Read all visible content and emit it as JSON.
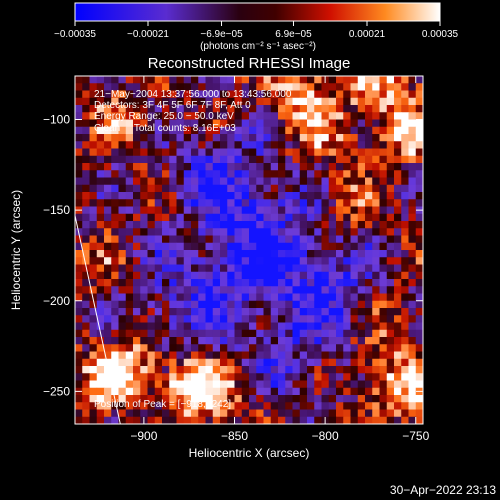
{
  "chart_data": {
    "type": "heatmap",
    "title": "Reconstructed RHESSI Image",
    "xlabel": "Heliocentric X (arcsec)",
    "ylabel": "Heliocentric Y (arcsec)",
    "xlim": [
      -938,
      -746
    ],
    "ylim": [
      -268,
      -76
    ],
    "x_ticks": [
      {
        "value": -900,
        "label": "−900"
      },
      {
        "value": -850,
        "label": "−850"
      },
      {
        "value": -800,
        "label": "−800"
      },
      {
        "value": -750,
        "label": "−750"
      }
    ],
    "y_ticks": [
      {
        "value": -100,
        "label": "−100"
      },
      {
        "value": -150,
        "label": "−150"
      },
      {
        "value": -200,
        "label": "−200"
      },
      {
        "value": -250,
        "label": "−250"
      }
    ],
    "colorbar": {
      "min": -0.00035,
      "max": 0.00035,
      "ticks": [
        {
          "value": -0.00035,
          "label": "−0.00035"
        },
        {
          "value": -0.00021,
          "label": "−0.00021"
        },
        {
          "value": -6.9e-05,
          "label": "−6.9e−05"
        },
        {
          "value": 6.9e-05,
          "label": "6.9e−05"
        },
        {
          "value": 0.00021,
          "label": "0.00021"
        },
        {
          "value": 0.00035,
          "label": "0.00035"
        }
      ],
      "units": "(photons cm⁻² s⁻¹ asec⁻²)",
      "colors": [
        "#1a1aff",
        "#7a3cd6",
        "#2a0000",
        "#c01000",
        "#ff7a1a",
        "#ffffff"
      ]
    },
    "annotations": [
      "21−May−2004 13:37:56.000 to 13:43:56.000",
      "Detectors: 3F 4F 5F 6F 7F 8F, Att 0",
      "Energy Range: 25.0 − 50.0 keV",
      "Clean     Total counts: 8.16E+03"
    ],
    "peak_label": "Position of Peak = [−918,−242]",
    "peak": {
      "x": -918,
      "y": -242
    },
    "limb_line": {
      "x1": -938,
      "y1": -153,
      "x2": -913,
      "y2": -268
    },
    "grid_size": 48,
    "grid": false
  },
  "footer": {
    "timestamp": "30−Apr−2022 23:13"
  }
}
